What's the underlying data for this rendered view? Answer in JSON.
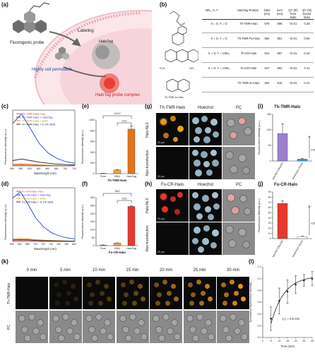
{
  "panels": {
    "a": {
      "label": "(a)",
      "probe": "Fluorogenic probe",
      "labeling": "Labeling",
      "halotag": "HaloTag",
      "permeable": "Highly cell permeable",
      "complex": "HaloTag probe complex"
    },
    "b": {
      "label": "(b)",
      "nr2": "NR₂, X, Y",
      "headers": [
        "HaloTag Probes",
        "λabs (nm)",
        "λem (nm)",
        "QY (Φ) Free state",
        "QY (Φ) bound state"
      ],
      "rows": [
        {
          "xy": "X = S; Y = O",
          "probe": "Th-TMR-Halo",
          "abs": "578",
          "em": "596",
          "qyfree": "<0.01",
          "qybound": "0.28"
        },
        {
          "xy": "X = S; Y = O",
          "probe": "Th-TMR-Py-Halo",
          "abs": "584",
          "em": "601",
          "qyfree": "<0.01",
          "qybound": "0.59"
        },
        {
          "xy": "X = S; Y = CMe₂",
          "probe": "Th-CR-Halo",
          "abs": "641",
          "em": "657",
          "qyfree": "<0.01",
          "qybound": "0.18"
        },
        {
          "xy": "X = O; Y = CMe₂",
          "probe": "Fu-CR-Halo",
          "abs": "647",
          "em": "663",
          "qyfree": "<0.01",
          "qybound": "0.11"
        },
        {
          "xy": "",
          "probe": "Th-TMR-Ju-Halo",
          "abs": "604",
          "em": "619",
          "qyfree": "<0.01",
          "qybound": "0.21"
        }
      ],
      "ju_label": "Th-TMR-Ju-Halo"
    },
    "c": {
      "label": "(c)",
      "xlabel": "Wavelength (nm)",
      "ylabel": "Fluorescence intensity (a.u.)"
    },
    "d": {
      "label": "(d)",
      "xlabel": "Wavelength (nm)",
      "ylabel": "Fluorescence intensity (a.u.)"
    },
    "e": {
      "label": "(e)",
      "xlabel": "Th-TMR-Halo",
      "ylabel": "Fluorescence intensity (a.u.)",
      "fold1": "X147",
      "fold2": "X12"
    },
    "f": {
      "label": "(f)",
      "xlabel": "Fu-CR-Halo",
      "ylabel": "Fluorescence intensity (a.u.)",
      "fold1": "X62",
      "fold2": "X15"
    },
    "g": {
      "label": "(g)",
      "col1": "Th-TMR-Halo",
      "col2": "Hoechst",
      "col3": "PC",
      "row1": "Halo-NLS",
      "row2": "Non-transfection",
      "scale": "20 μm"
    },
    "h": {
      "label": "(h)",
      "col1": "Fu-CR-Halo",
      "col2": "Hoechst",
      "col3": "PC",
      "row1": "Halo-NLS",
      "row2": "Non-transfection",
      "scale": "20 μm"
    },
    "i": {
      "label": "(i)",
      "title": "Th-TMR-Halo",
      "ylabel": "Fluorescence intensity (a.u.)",
      "fold": "x14.1"
    },
    "j": {
      "label": "(j)",
      "title": "Fu-CR-Halo",
      "ylabel": "Fluorescence intensity (a.u.)",
      "fold": "x16.6"
    },
    "k": {
      "label": "(k)",
      "times": [
        "0 min",
        "5 min",
        "10 min",
        "15 min",
        "20 min",
        "25 min",
        "30 min"
      ],
      "row1": "Th-TMR-Halo",
      "row2": "PC"
    },
    "l": {
      "label": "(l)",
      "xlabel": "Time (min)",
      "ylabel": "Normalized fluorescence intensity",
      "annot": "t₁/₂ = 9.6 min"
    }
  },
  "chart_data": [
    {
      "id": "c",
      "type": "line",
      "x": [
        580,
        600,
        620,
        640,
        660,
        680,
        700,
        720
      ],
      "xticks": [
        "580",
        "600",
        "620",
        "640",
        "660",
        "680",
        "700",
        "720"
      ],
      "ylim": [
        0,
        1.05
      ],
      "series": [
        {
          "name": "Th-TMR-Halo Free",
          "color": "#e8372c",
          "values": [
            0.015,
            0.02,
            0.015,
            0.01,
            0.008,
            0.005,
            0.004,
            0.003
          ]
        },
        {
          "name": "Th-TMR-Halo + HaloTag",
          "color": "#1f3fd6",
          "values": [
            0.8,
            0.98,
            0.7,
            0.42,
            0.24,
            0.14,
            0.08,
            0.05
          ]
        },
        {
          "name": "Th-TMR-Halo + BSA",
          "color": "#d98a2a",
          "values": [
            0.03,
            0.04,
            0.03,
            0.02,
            0.015,
            0.01,
            0.008,
            0.006
          ]
        },
        {
          "name": "Th-TMR-Halo + 0.1% SDS",
          "color": "#222222",
          "values": [
            0.1,
            0.13,
            0.1,
            0.07,
            0.05,
            0.035,
            0.025,
            0.02
          ]
        }
      ]
    },
    {
      "id": "d",
      "type": "line",
      "x": [
        640,
        660,
        680,
        700,
        720,
        740,
        760,
        780,
        800
      ],
      "xticks": [
        "640",
        "660",
        "680",
        "700",
        "720",
        "740",
        "760",
        "780",
        "800"
      ],
      "ylim": [
        0,
        1.05
      ],
      "series": [
        {
          "name": "Fu-CR-Halo Free",
          "color": "#e8372c",
          "values": [
            0.02,
            0.025,
            0.02,
            0.015,
            0.01,
            0.008,
            0.006,
            0.005,
            0.004
          ]
        },
        {
          "name": "Fu-CR-Halo + HaloTag",
          "color": "#1f3fd6",
          "values": [
            0.85,
            0.97,
            0.72,
            0.45,
            0.28,
            0.17,
            0.11,
            0.07,
            0.05
          ]
        },
        {
          "name": "Fu-CR-Halo + BSA",
          "color": "#d98a2a",
          "values": [
            0.05,
            0.06,
            0.05,
            0.035,
            0.025,
            0.02,
            0.015,
            0.01,
            0.008
          ]
        },
        {
          "name": "Fu-CR-Halo + 0.1% SDS",
          "color": "#222222",
          "values": [
            0.03,
            0.035,
            0.03,
            0.02,
            0.015,
            0.012,
            0.01,
            0.008,
            0.006
          ]
        }
      ]
    },
    {
      "id": "e",
      "type": "bar",
      "categories": [
        "Free",
        "BSA",
        "HaloTag"
      ],
      "values": [
        5,
        70,
        830
      ],
      "errors": [
        2,
        8,
        60
      ],
      "colors": [
        "#b0b0b0",
        "#f4a13a",
        "#e87318"
      ],
      "ylim": [
        0,
        1000
      ],
      "yticks": [
        "0",
        "200",
        "400",
        "600",
        "800",
        "1000"
      ]
    },
    {
      "id": "f",
      "type": "bar",
      "categories": [
        "Free",
        "BSA",
        "HaloTag"
      ],
      "values": [
        4,
        16,
        245
      ],
      "errors": [
        1,
        2,
        5
      ],
      "colors": [
        "#b0b0b0",
        "#f4a13a",
        "#e8372c"
      ],
      "ylim": [
        0,
        300
      ],
      "yticks": [
        "0",
        "50",
        "100",
        "150",
        "200",
        "250",
        "300"
      ]
    },
    {
      "id": "i",
      "type": "bar",
      "categories": [
        "Halo-NLS (Nuclei)",
        "Non-transfection (Cyto)"
      ],
      "values": [
        88,
        6
      ],
      "errors": [
        32,
        2
      ],
      "colors": [
        "#9b7fd1",
        "#3aa0e0"
      ],
      "ylim": [
        0,
        150
      ],
      "yticks": [
        "0",
        "50",
        "100",
        "150"
      ]
    },
    {
      "id": "j",
      "type": "bar",
      "categories": [
        "Halo-NLS (Nuclei)",
        "Non-transfection (Cyto)"
      ],
      "values": [
        68,
        4
      ],
      "errors": [
        5,
        1
      ],
      "colors": [
        "#e8372c",
        "#ffffff"
      ],
      "ylim": [
        0,
        90
      ],
      "yticks": [
        "0",
        "10",
        "20",
        "30",
        "40",
        "50",
        "60",
        "70",
        "80",
        "90"
      ]
    },
    {
      "id": "l",
      "type": "line",
      "x": [
        5,
        10,
        15,
        20,
        25,
        30
      ],
      "values": [
        0.32,
        0.62,
        0.78,
        0.9,
        0.97,
        1.0
      ],
      "errors": [
        0.2,
        0.22,
        0.2,
        0.15,
        0.1,
        0.12
      ],
      "ylim": [
        0,
        1.2
      ],
      "xlim": [
        0,
        30
      ],
      "xticks": [
        "0",
        "5",
        "10",
        "15",
        "20",
        "25",
        "30"
      ],
      "yticks": [
        "0.0",
        "0.2",
        "0.4",
        "0.6",
        "0.8",
        "1.0",
        "1.2"
      ]
    }
  ]
}
